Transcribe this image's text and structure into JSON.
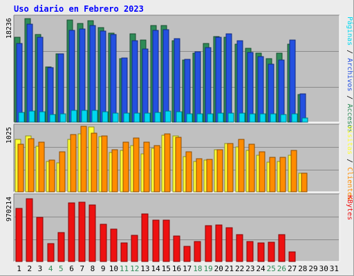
{
  "title": "Uso diario en Febrero 2023",
  "colors": {
    "background": "#ececec",
    "panel": "#c0c0c0",
    "title": "#0000ff",
    "visits_green": "#2e8b57",
    "pages_blue": "#2450e0",
    "files_cyan": "#00d8f0",
    "visitors_yellow": "#ffff33",
    "clients_orange": "#ff8c00",
    "kbytes_red": "#ee1111",
    "weekend_label": "#2e8b57",
    "weekday_label": "#000000"
  },
  "chart_data": {
    "type": "bar",
    "title": "Uso diario en Febrero 2023",
    "categories": [
      "1",
      "2",
      "3",
      "4",
      "5",
      "6",
      "7",
      "8",
      "9",
      "10",
      "11",
      "12",
      "13",
      "14",
      "15",
      "16",
      "17",
      "18",
      "19",
      "20",
      "21",
      "22",
      "23",
      "24",
      "25",
      "26",
      "27",
      "28",
      "29",
      "30",
      "31"
    ],
    "weekend_days": [
      "4",
      "5",
      "11",
      "12",
      "18",
      "19",
      "25",
      "26"
    ],
    "panels": [
      {
        "scale_label": "18236",
        "legend_labels": [
          "Accesos",
          "Archivos",
          "Páginas"
        ],
        "ylim": [
          0,
          18236
        ],
        "series": [
          {
            "name": "Accesos",
            "color": "#2e8b57",
            "values": [
              14800,
              18100,
              15300,
              9700,
              11900,
              17900,
              17300,
              17700,
              16600,
              15600,
              11100,
              15400,
              14400,
              16900,
              16900,
              14300,
              10900,
              12100,
              13800,
              15000,
              14900,
              13600,
              12900,
              12100,
              11100,
              12100,
              13700,
              4800,
              0,
              0,
              0
            ]
          },
          {
            "name": "Archivos",
            "color": "#2450e0",
            "values": [
              13800,
              17100,
              14800,
              9500,
              11900,
              16100,
              16300,
              16900,
              15900,
              15300,
              11200,
              14300,
              12800,
              16100,
              16200,
              14600,
              11000,
              12300,
              13000,
              14800,
              15400,
              14300,
              12200,
              11500,
              10200,
              10900,
              14400,
              4900,
              0,
              0,
              0
            ]
          },
          {
            "name": "Páginas",
            "color": "#00d8f0",
            "values": [
              1700,
              1900,
              1800,
              1300,
              1400,
              2000,
              2100,
              2000,
              1800,
              1600,
              1600,
              1600,
              1600,
              1700,
              1900,
              1800,
              1500,
              1400,
              1400,
              1600,
              1600,
              1600,
              1500,
              1500,
              1400,
              1300,
              1500,
              700,
              0,
              0,
              0
            ]
          }
        ]
      },
      {
        "scale_label": "1025",
        "legend_labels": [
          "Clientes",
          "Visitas"
        ],
        "ylim": [
          0,
          1025
        ],
        "series": [
          {
            "name": "Visitas",
            "color": "#ffff33",
            "values": [
              830,
              880,
              720,
              480,
              460,
              830,
              920,
              1020,
              870,
              620,
              650,
              730,
              600,
              690,
              890,
              880,
              560,
              480,
              500,
              660,
              760,
              710,
              650,
              580,
              470,
              480,
              580,
              290,
              0,
              0,
              0
            ]
          },
          {
            "name": "Clientes",
            "color": "#ff8c00",
            "values": [
              750,
              840,
              780,
              500,
              630,
              900,
              1040,
              930,
              880,
              670,
              790,
              850,
              780,
              730,
              920,
              860,
              630,
              520,
              510,
              670,
              760,
              830,
              750,
              630,
              550,
              540,
              650,
              290,
              0,
              0,
              0
            ]
          }
        ]
      },
      {
        "scale_label": "970214",
        "legend_labels": [
          "KBytes"
        ],
        "ylim": [
          0,
          970214
        ],
        "series": [
          {
            "name": "KBytes",
            "color": "#ee1111",
            "values": [
              790000,
              940000,
              660000,
              270000,
              430000,
              880000,
              890000,
              850000,
              560000,
              480000,
              280000,
              390000,
              710000,
              620000,
              620000,
              380000,
              230000,
              300000,
              540000,
              550000,
              510000,
              400000,
              300000,
              280000,
              290000,
              400000,
              140000,
              0,
              0,
              0,
              0
            ]
          }
        ]
      }
    ]
  }
}
